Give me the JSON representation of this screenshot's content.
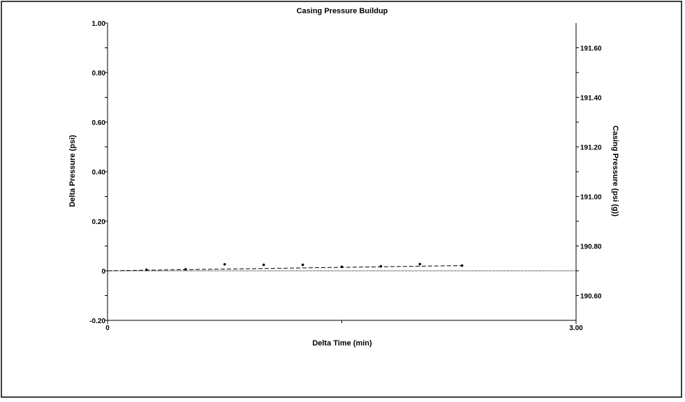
{
  "chart_data": {
    "type": "scatter",
    "title": "Casing Pressure Buildup",
    "xlabel": "Delta Time (min)",
    "ylabel": "Delta Pressure (psi)",
    "y2label": "Casing Pressure (psi (g))",
    "xlim": [
      0,
      3.0
    ],
    "ylim": [
      -0.2,
      1.0
    ],
    "y2lim": [
      190.5,
      191.7
    ],
    "x_tick_labels": [
      {
        "value": 0,
        "label": "0"
      },
      {
        "value": 3.0,
        "label": "3.00"
      }
    ],
    "x_minor_ticks": [
      1.5
    ],
    "y_tick_labels": [
      {
        "value": 1.0,
        "label": "1.00"
      },
      {
        "value": 0.8,
        "label": "0.80"
      },
      {
        "value": 0.6,
        "label": "0.60"
      },
      {
        "value": 0.4,
        "label": "0.40"
      },
      {
        "value": 0.2,
        "label": "0.20"
      },
      {
        "value": 0,
        "label": "0"
      },
      {
        "value": -0.2,
        "label": "-0.20"
      }
    ],
    "y2_tick_labels": [
      {
        "value": 191.6,
        "label": "191.60"
      },
      {
        "value": 191.4,
        "label": "191.40"
      },
      {
        "value": 191.2,
        "label": "191.20"
      },
      {
        "value": 191.0,
        "label": "191.00"
      },
      {
        "value": 190.8,
        "label": "190.80"
      },
      {
        "value": 190.6,
        "label": "190.60"
      }
    ],
    "series": [
      {
        "points": [
          {
            "x": 0.25,
            "y": 0.004
          },
          {
            "x": 0.5,
            "y": 0.006
          },
          {
            "x": 0.75,
            "y": 0.026
          },
          {
            "x": 1.0,
            "y": 0.024
          },
          {
            "x": 1.25,
            "y": 0.024
          },
          {
            "x": 1.5,
            "y": 0.016
          },
          {
            "x": 1.75,
            "y": 0.018
          },
          {
            "x": 2.0,
            "y": 0.027
          },
          {
            "x": 2.27,
            "y": 0.021
          }
        ]
      }
    ],
    "trend_line": {
      "x": [
        0,
        2.27
      ],
      "y": [
        0,
        0.021
      ]
    },
    "reference_line_y": 0,
    "legend": "none",
    "grid": false
  }
}
